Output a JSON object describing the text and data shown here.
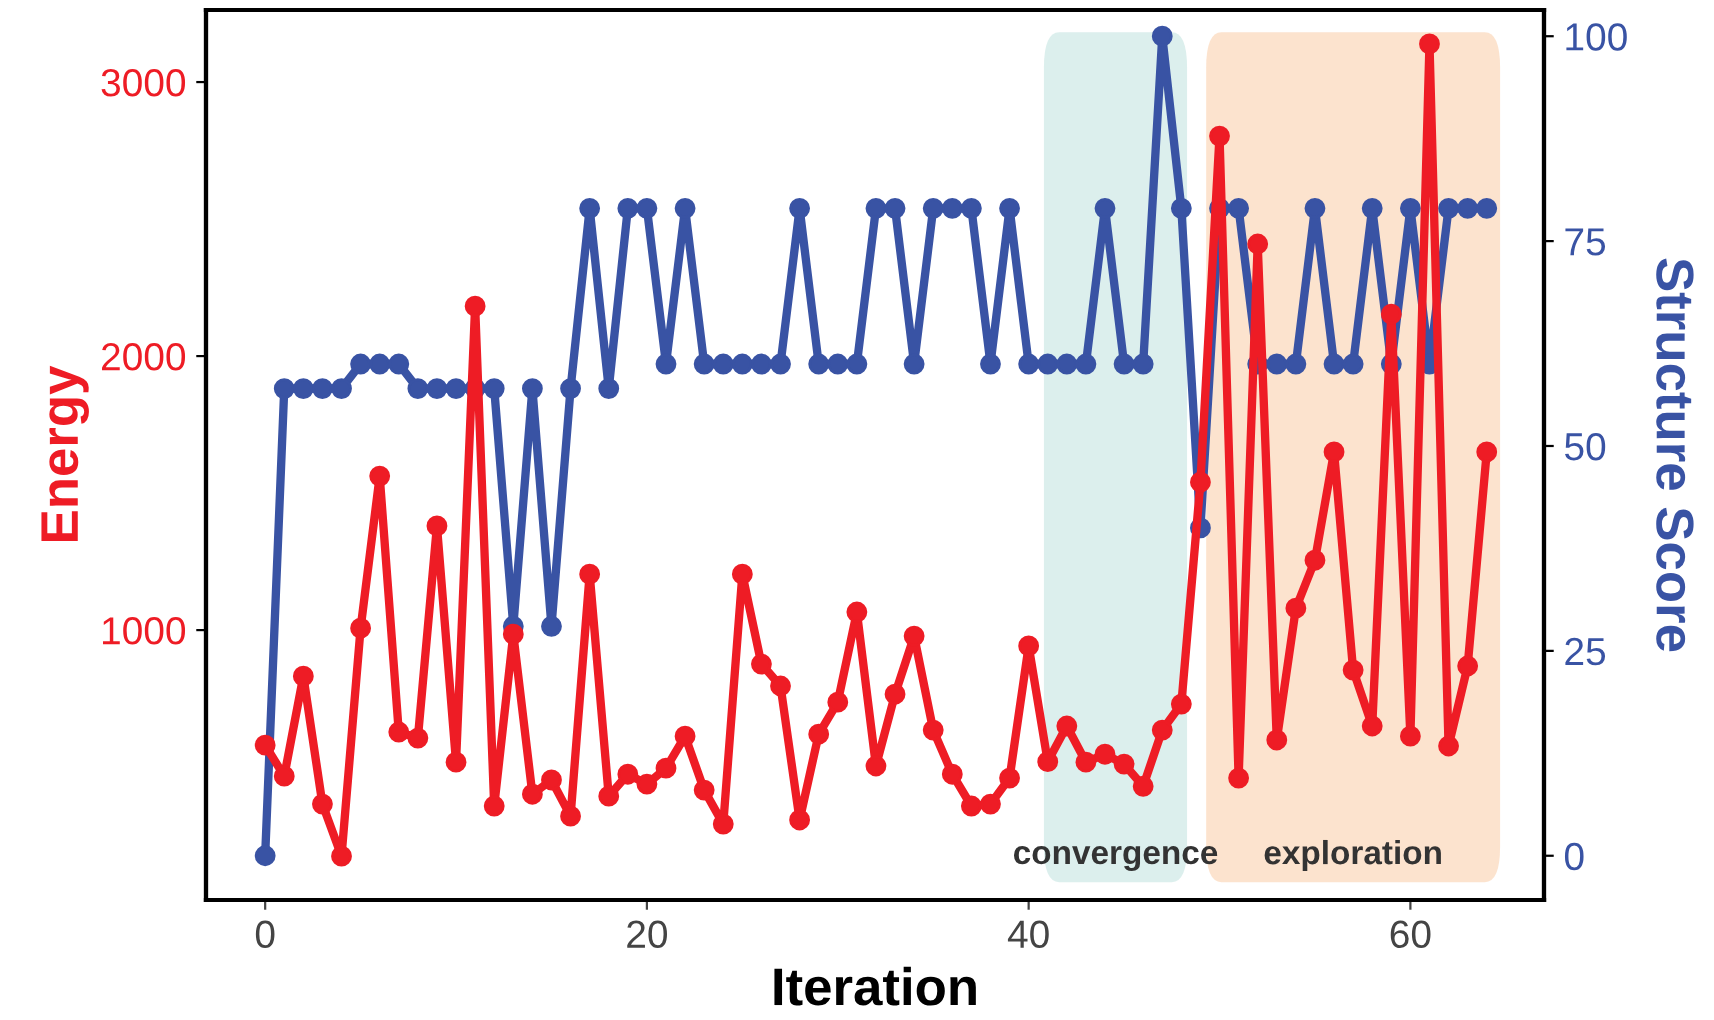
{
  "chart_data": {
    "type": "line",
    "xlabel": "Iteration",
    "ylabel": "Energy",
    "y2label": "Structure Score",
    "marker": "circle",
    "line_style": "solid",
    "grid": false,
    "legend": false,
    "xlim": [
      -3.1,
      67
    ],
    "xticks": [
      0,
      20,
      40,
      60
    ],
    "ylim": [
      15,
      3263
    ],
    "yticks": [
      1000,
      2000,
      3000
    ],
    "y2lim": [
      -5.4,
      103.2
    ],
    "y2ticks": [
      0,
      25,
      50,
      75,
      100
    ],
    "series": [
      {
        "name": null,
        "color": "#ee1c25",
        "x": [
          0,
          1,
          2,
          3,
          4,
          5,
          6,
          7,
          8,
          9,
          10,
          11,
          12,
          13,
          14,
          15,
          16,
          17,
          18,
          19,
          20,
          21,
          22,
          23,
          24,
          25,
          26,
          27,
          28,
          29,
          30,
          31,
          32,
          33,
          34,
          35,
          36,
          37,
          38,
          39,
          40,
          41,
          42,
          43,
          44,
          45,
          46,
          47,
          48,
          49,
          50,
          51,
          52,
          53,
          54,
          55,
          56,
          57,
          58,
          59,
          60,
          61,
          62,
          63,
          64
        ],
        "values": [
          580,
          467,
          832,
          365,
          175,
          1007,
          1562,
          628,
          606,
          1380,
          518,
          2182,
          358,
          985,
          401,
          453,
          321,
          1204,
          394,
          474,
          438,
          496,
          613,
          416,
          292,
          1204,
          876,
          796,
          307,
          620,
          737,
          1066,
          504,
          766,
          978,
          635,
          474,
          358,
          365,
          460,
          942,
          520,
          650,
          518,
          547,
          511,
          430,
          635,
          730,
          1540,
          2803,
          460,
          2409,
          599,
          1080,
          1255,
          1650,
          854,
          650,
          2153,
          613,
          3139,
          577,
          869,
          1650
        ]
      },
      {
        "name": null,
        "color": "#3953a4",
        "axis": "y2",
        "x": [
          0,
          1,
          2,
          3,
          4,
          5,
          6,
          7,
          8,
          9,
          10,
          11,
          12,
          13,
          14,
          15,
          16,
          17,
          18,
          19,
          20,
          21,
          22,
          23,
          24,
          25,
          26,
          27,
          28,
          29,
          30,
          31,
          32,
          33,
          34,
          35,
          36,
          37,
          38,
          39,
          40,
          41,
          42,
          43,
          44,
          45,
          46,
          47,
          48,
          49,
          50,
          51,
          52,
          53,
          54,
          55,
          56,
          57,
          58,
          59,
          60,
          61,
          62,
          63,
          64
        ],
        "values": [
          0,
          57,
          57,
          57,
          57,
          60,
          60,
          60,
          57,
          57,
          57,
          57,
          57,
          28,
          57,
          28,
          57,
          79,
          57,
          79,
          79,
          60,
          79,
          60,
          60,
          60,
          60,
          60,
          79,
          60,
          60,
          60,
          79,
          79,
          60,
          79,
          79,
          79,
          60,
          79,
          60,
          60,
          60,
          60,
          79,
          60,
          60,
          100,
          79,
          40,
          79,
          79,
          60,
          60,
          60,
          79,
          60,
          60,
          79,
          60,
          79,
          60,
          79,
          79,
          79
        ]
      }
    ],
    "bands": [
      {
        "axis": "x",
        "from": 40.8,
        "to": 48.3,
        "label": "convergence",
        "color": "#8ccbc4"
      },
      {
        "axis": "x",
        "from": 49.3,
        "to": 64.7,
        "label": "exploration",
        "color": "#f5a15c"
      }
    ]
  }
}
